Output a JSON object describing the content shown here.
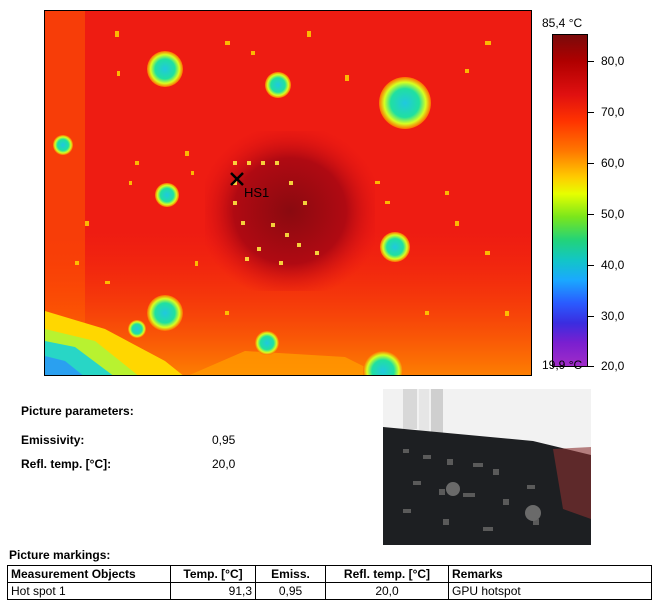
{
  "chart_data": {
    "type": "heatmap",
    "scale_max_label": "85,4 °C",
    "scale_min_label": "19,9 °C",
    "ticks": [
      "80,0",
      "70,0",
      "60,0",
      "50,0",
      "40,0",
      "30,0",
      "20,0"
    ],
    "range": [
      19.9,
      85.4
    ],
    "marker_label": "HS1"
  },
  "parameters": {
    "title": "Picture parameters:",
    "emissivity_label": "Emissivity:",
    "emissivity_value": "0,95",
    "refl_label": "Refl. temp. [°C]:",
    "refl_value": "20,0"
  },
  "markings": {
    "title": "Picture markings:",
    "headers": [
      "Measurement Objects",
      "Temp. [°C]",
      "Emiss.",
      "Refl. temp. [°C]",
      "Remarks"
    ],
    "rows": [
      [
        "Hot spot 1",
        "91,3",
        "0,95",
        "20,0",
        "GPU hotspot"
      ]
    ]
  }
}
